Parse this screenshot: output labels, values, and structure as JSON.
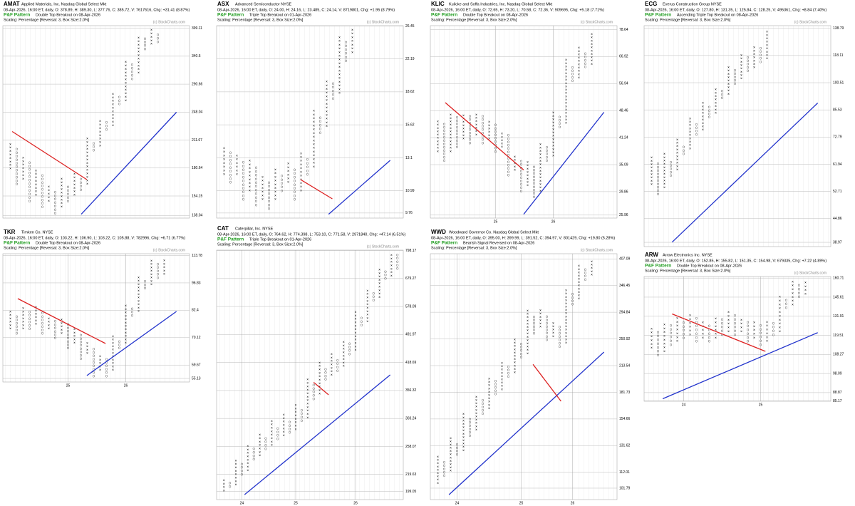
{
  "chart_data": [
    {
      "type": "pnf",
      "title": "AMAT",
      "subtitle": "Applied Materials, Inc.  Nasdaq Global Select Mkt",
      "quote": "08-Apr-2026, 16:00 ET, daily, O: 378.89, H: 389.30, L: 377.76, C: 385.72, V: 7617616, Chg: +31.41 (8.87%)",
      "pattern_label": "P&F Pattern",
      "pattern": "Double Top Breakout on 08-Apr-2026",
      "scaling": "Scaling: Percentage [Reversal: 3, Box Size:2.0%]",
      "credit": "(c) StockCharts.com",
      "box_size_pct": 2,
      "log_scale": true,
      "first_column": "X",
      "ylim": [
        136,
        405
      ],
      "yticks": [
        399.11,
        340.6,
        290.66,
        248.04,
        211.67,
        180.64,
        154.15,
        138.04
      ],
      "columns": [
        [
          180,
          210
        ],
        [
          165,
          205
        ],
        [
          170,
          195
        ],
        [
          150,
          190
        ],
        [
          155,
          180
        ],
        [
          145,
          175
        ],
        [
          150,
          165
        ],
        [
          140,
          160
        ],
        [
          145,
          170
        ],
        [
          150,
          165
        ],
        [
          155,
          175
        ],
        [
          160,
          170
        ],
        [
          165,
          215
        ],
        [
          200,
          210
        ],
        [
          205,
          240
        ],
        [
          225,
          235
        ],
        [
          230,
          280
        ],
        [
          260,
          275
        ],
        [
          265,
          330
        ],
        [
          300,
          325
        ],
        [
          310,
          385
        ],
        [
          355,
          380
        ],
        [
          365,
          399
        ],
        [
          370,
          390
        ]
      ]
    },
    {
      "type": "pnf",
      "title": "ASX",
      "subtitle": "Advanced Semiconductor  NYSE",
      "quote": "08-Apr-2026, 16:00 ET, daily, O: 24.00, H: 24.16, L: 23.485, C: 24.14, V: 8719801, Chg: +1.95 (8.79%)",
      "pattern_label": "P&F Pattern",
      "pattern": "Triple Top Breakout on 01-Apr-2026",
      "scaling": "Scaling: Percentage [Reversal: 3, Box Size:2.0%]",
      "credit": "(c) StockCharts.com",
      "box_size_pct": 2,
      "log_scale": true,
      "first_column": "X",
      "ylim": [
        9.5,
        26.5
      ],
      "yticks": [
        26.45,
        22.19,
        18.62,
        15.62,
        13.1,
        10.99,
        9.76
      ],
      "columns": [
        [
          12,
          14
        ],
        [
          11.5,
          13.5
        ],
        [
          12,
          13.5
        ],
        [
          10.5,
          13
        ],
        [
          11,
          13
        ],
        [
          10.2,
          12.5
        ],
        [
          10.5,
          12
        ],
        [
          10,
          11.5
        ],
        [
          10.5,
          12.5
        ],
        [
          11,
          12
        ],
        [
          11.5,
          12.8
        ],
        [
          10.5,
          12.5
        ],
        [
          11,
          13.5
        ],
        [
          12,
          13
        ],
        [
          12.5,
          17
        ],
        [
          15,
          16.5
        ],
        [
          15.5,
          20
        ],
        [
          18,
          19.5
        ],
        [
          18.5,
          25
        ],
        [
          22,
          24.5
        ],
        [
          23,
          26
        ]
      ]
    },
    {
      "type": "pnf",
      "title": "KLIC",
      "subtitle": "Kulicke and Soffa Industries, Inc.  Nasdaq Global Select Mkt",
      "quote": "08-Apr-2026, 16:00 ET, daily, O: 72.65, H: 73.20, L: 70.58, C: 72.36, V: 909695, Chg: +5.18 (7.71%)",
      "pattern_label": "P&F Pattern",
      "pattern": "Double Top Breakout on 08-Apr-2026",
      "scaling": "Scaling: Percentage [Reversal: 3, Box Size:2.0%]",
      "credit": "(c) StockCharts.com",
      "box_size_pct": 2,
      "log_scale": true,
      "first_column": "X",
      "ylim": [
        25.5,
        80.5
      ],
      "yticks": [
        78.64,
        66.92,
        56.94,
        48.46,
        41.24,
        35.09,
        29.86,
        25.96
      ],
      "xticks": [
        {
          "value": 9,
          "label": "25"
        },
        {
          "value": 18,
          "label": "26"
        }
      ],
      "columns": [
        [
          38,
          46
        ],
        [
          36,
          45
        ],
        [
          38,
          48
        ],
        [
          39,
          47
        ],
        [
          41,
          48
        ],
        [
          40,
          47
        ],
        [
          42,
          48
        ],
        [
          40,
          47
        ],
        [
          41,
          46
        ],
        [
          38,
          45
        ],
        [
          39,
          43
        ],
        [
          33,
          42
        ],
        [
          34,
          37
        ],
        [
          30,
          36
        ],
        [
          31,
          36
        ],
        [
          29,
          35
        ],
        [
          30,
          40
        ],
        [
          36,
          39
        ],
        [
          37,
          48
        ],
        [
          44,
          47
        ],
        [
          45,
          66
        ],
        [
          58,
          64
        ],
        [
          59,
          71
        ],
        [
          63,
          69
        ],
        [
          64,
          78
        ]
      ]
    },
    {
      "type": "pnf",
      "title": "ECG",
      "subtitle": "Everus Construction Group  NYSE",
      "quote": "08-Apr-2026, 16:00 ET, daily, O: 127.80, H: 131.35, L: 125.84, C: 128.25, V: 495361, Chg: +8.84 (7.40%)",
      "pattern_label": "P&F Pattern",
      "pattern": "Ascending Triple Top Breakout on 08-Apr-2026",
      "scaling": "Scaling: Percentage [Reversal: 3, Box Size:2.0%]",
      "credit": "(c) StockCharts.com",
      "box_size_pct": 2,
      "log_scale": true,
      "first_column": "X",
      "ylim": [
        38,
        141
      ],
      "yticks": [
        138.79,
        118.11,
        100.51,
        85.53,
        72.79,
        61.94,
        52.71,
        44.86,
        38.97
      ],
      "columns": [
        [
          55,
          65
        ],
        [
          52,
          63
        ],
        [
          54,
          66
        ],
        [
          58,
          64
        ],
        [
          60,
          72
        ],
        [
          66,
          70
        ],
        [
          68,
          82
        ],
        [
          74,
          80
        ],
        [
          76,
          90
        ],
        [
          82,
          88
        ],
        [
          84,
          98
        ],
        [
          92,
          96
        ],
        [
          94,
          112
        ],
        [
          100,
          110
        ],
        [
          103,
          120
        ],
        [
          108,
          118
        ],
        [
          110,
          126
        ],
        [
          114,
          124
        ],
        [
          116,
          138
        ]
      ]
    },
    {
      "type": "pnf",
      "title": "TKR",
      "subtitle": "Timken Co.  NYSE",
      "quote": "08-Apr-2026, 16:00 ET, daily, O: 103.22, H: 106.90, L: 103.22, C: 105.88, V: 782996, Chg: +6.71 (6.77%)",
      "pattern_label": "P&F Pattern",
      "pattern": "Double Top Breakout on 08-Apr-2026",
      "scaling": "Scaling: Percentage [Reversal: 3, Box Size:2.0%]",
      "credit": "(c) StockCharts.com",
      "box_size_pct": 2,
      "log_scale": true,
      "first_column": "X",
      "ylim": [
        54,
        115
      ],
      "yticks": [
        113.78,
        96.83,
        82.4,
        70.12,
        59.67,
        55.13
      ],
      "xticks": [
        {
          "value": 9,
          "label": "25"
        },
        {
          "value": 18,
          "label": "26"
        }
      ],
      "columns": [
        [
          74,
          82
        ],
        [
          72,
          80
        ],
        [
          74,
          84
        ],
        [
          74,
          82
        ],
        [
          76,
          84
        ],
        [
          72,
          82
        ],
        [
          74,
          80
        ],
        [
          70,
          78
        ],
        [
          72,
          78
        ],
        [
          66,
          76
        ],
        [
          68,
          74
        ],
        [
          62,
          72
        ],
        [
          64,
          68
        ],
        [
          56,
          66
        ],
        [
          58,
          64
        ],
        [
          56,
          62
        ],
        [
          58,
          72
        ],
        [
          66,
          70
        ],
        [
          68,
          86
        ],
        [
          80,
          84
        ],
        [
          82,
          100
        ],
        [
          94,
          98
        ],
        [
          96,
          112
        ],
        [
          100,
          110
        ],
        [
          102,
          112
        ]
      ]
    },
    {
      "type": "pnf",
      "title": "CAT",
      "subtitle": "Caterpillar, Inc.  NYSE",
      "quote": "08-Apr-2026, 16:00 ET, daily, O: 764.62, H: 774.398, L: 753.10, C: 771.58, V: 2971840, Chg: +47.14 (6.51%)",
      "pattern_label": "P&F Pattern",
      "pattern": "Triple Top Breakout on 01-Apr-2026",
      "scaling": "Scaling: Percentage [Reversal: 3, Box Size:2.0%]",
      "credit": "(c) StockCharts.com",
      "box_size_pct": 2,
      "log_scale": true,
      "first_column": "X",
      "ylim": [
        190,
        800
      ],
      "yticks": [
        798.17,
        679.27,
        578.09,
        491.97,
        418.69,
        356.32,
        303.24,
        258.07,
        219.63,
        199.05
      ],
      "xticks": [
        {
          "value": 3,
          "label": "24"
        },
        {
          "value": 12,
          "label": "25"
        },
        {
          "value": 22,
          "label": "26"
        }
      ],
      "columns": [
        [
          200,
          215
        ],
        [
          205,
          212
        ],
        [
          207,
          240
        ],
        [
          220,
          235
        ],
        [
          225,
          260
        ],
        [
          240,
          255
        ],
        [
          245,
          280
        ],
        [
          255,
          275
        ],
        [
          260,
          300
        ],
        [
          270,
          290
        ],
        [
          275,
          310
        ],
        [
          280,
          300
        ],
        [
          285,
          330
        ],
        [
          300,
          320
        ],
        [
          305,
          380
        ],
        [
          340,
          370
        ],
        [
          350,
          420
        ],
        [
          380,
          410
        ],
        [
          390,
          440
        ],
        [
          400,
          430
        ],
        [
          410,
          480
        ],
        [
          440,
          470
        ],
        [
          450,
          560
        ],
        [
          520,
          550
        ],
        [
          530,
          640
        ],
        [
          600,
          630
        ],
        [
          610,
          720
        ],
        [
          680,
          710
        ],
        [
          690,
          790
        ],
        [
          720,
          780
        ]
      ]
    },
    {
      "type": "pnf",
      "title": "WWD",
      "subtitle": "Woodward Governor Co.  Nasdaq Global Select Mkt",
      "quote": "08-Apr-2026, 16:00 ET, daily, O: 395.00, H: 399.99, L: 391.52, C: 394.97, V: 801429, Chg: +19.80 (5.28%)",
      "pattern_label": "P&F Pattern",
      "pattern": "Bearish Signal Reversed on 08-Apr-2026",
      "scaling": "Scaling: Percentage [Reversal: 3, Box Size:2.0%]",
      "credit": "(c) StockCharts.com",
      "box_size_pct": 2,
      "log_scale": true,
      "first_column": "X",
      "ylim": [
        95,
        420
      ],
      "yticks": [
        407.09,
        346.45,
        294.84,
        250.92,
        213.54,
        181.73,
        154.66,
        131.62,
        112.01,
        101.79
      ],
      "xticks": [
        {
          "value": 3,
          "label": "24"
        },
        {
          "value": 13,
          "label": "25"
        },
        {
          "value": 21,
          "label": "26"
        }
      ],
      "columns": [
        [
          105,
          125
        ],
        [
          110,
          120
        ],
        [
          113,
          140
        ],
        [
          125,
          135
        ],
        [
          128,
          160
        ],
        [
          140,
          155
        ],
        [
          145,
          180
        ],
        [
          160,
          175
        ],
        [
          165,
          200
        ],
        [
          180,
          195
        ],
        [
          185,
          220
        ],
        [
          200,
          215
        ],
        [
          205,
          250
        ],
        [
          225,
          245
        ],
        [
          230,
          300
        ],
        [
          260,
          290
        ],
        [
          270,
          300
        ],
        [
          250,
          290
        ],
        [
          255,
          280
        ],
        [
          240,
          275
        ],
        [
          245,
          340
        ],
        [
          310,
          330
        ],
        [
          320,
          395
        ],
        [
          360,
          385
        ],
        [
          370,
          407
        ]
      ]
    },
    {
      "type": "pnf",
      "title": "ARW",
      "subtitle": "Arrow Electronics Inc.  NYSE",
      "quote": "08-Apr-2026, 16:00 ET, daily, O: 152.85, H: 155.82, L: 151.35, C: 154.98, V: 679335, Chg: +7.22 (4.89%)",
      "pattern_label": "P&F Pattern",
      "pattern": "Double Top Breakout on 08-Apr-2026",
      "scaling": "Scaling: Percentage [Reversal: 3, Box Size:2.0%]",
      "credit": "(c) StockCharts.com",
      "box_size_pct": 2,
      "log_scale": true,
      "first_column": "X",
      "ylim": [
        85,
        162
      ],
      "yticks": [
        160.71,
        145.61,
        131.91,
        119.51,
        108.27,
        98.09,
        88.87,
        85.17
      ],
      "xticks": [
        {
          "value": 5,
          "label": "24"
        },
        {
          "value": 17,
          "label": "25"
        }
      ],
      "columns": [
        [
          112,
          124
        ],
        [
          108,
          122
        ],
        [
          110,
          128
        ],
        [
          114,
          126
        ],
        [
          116,
          132
        ],
        [
          118,
          130
        ],
        [
          120,
          134
        ],
        [
          116,
          132
        ],
        [
          118,
          130
        ],
        [
          116,
          128
        ],
        [
          118,
          132
        ],
        [
          120,
          130
        ],
        [
          122,
          136
        ],
        [
          120,
          134
        ],
        [
          122,
          132
        ],
        [
          116,
          130
        ],
        [
          118,
          128
        ],
        [
          114,
          126
        ],
        [
          116,
          130
        ],
        [
          120,
          128
        ],
        [
          122,
          148
        ],
        [
          138,
          146
        ],
        [
          140,
          158
        ],
        [
          146,
          156
        ],
        [
          148,
          158
        ]
      ]
    }
  ]
}
